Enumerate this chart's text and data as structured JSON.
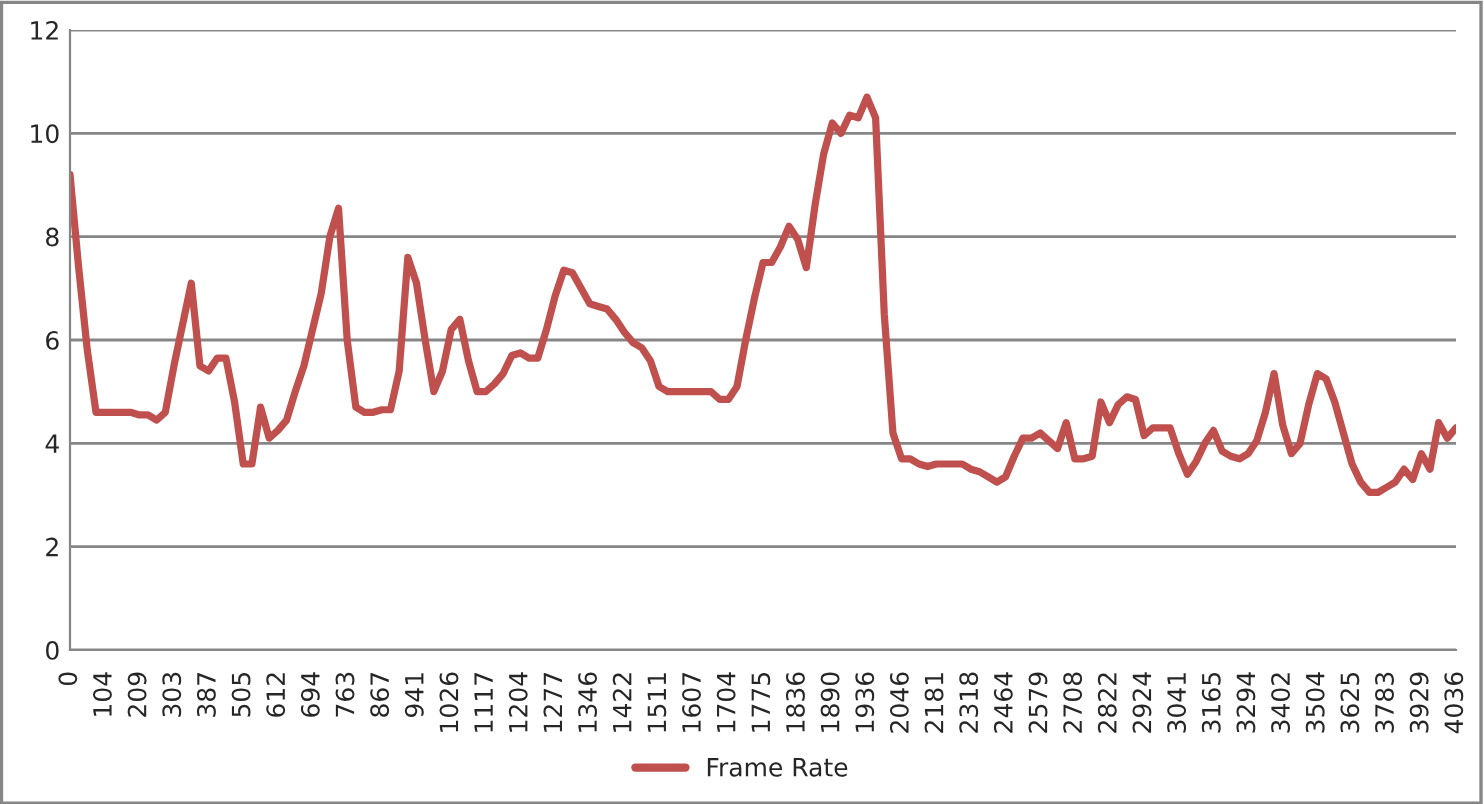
{
  "chart_data": {
    "type": "line",
    "categories": [
      "0",
      null,
      null,
      null,
      "104",
      null,
      null,
      null,
      "209",
      null,
      null,
      null,
      "303",
      null,
      null,
      null,
      "387",
      null,
      null,
      null,
      "505",
      null,
      null,
      null,
      "612",
      null,
      null,
      null,
      "694",
      null,
      null,
      null,
      "763",
      null,
      null,
      null,
      "867",
      null,
      null,
      null,
      "941",
      null,
      null,
      null,
      "1026",
      null,
      null,
      null,
      "1117",
      null,
      null,
      null,
      "1204",
      null,
      null,
      null,
      "1277",
      null,
      null,
      null,
      "1346",
      null,
      null,
      null,
      "1422",
      null,
      null,
      null,
      "1511",
      null,
      null,
      null,
      "1607",
      null,
      null,
      null,
      "1704",
      null,
      null,
      null,
      "1775",
      null,
      null,
      null,
      "1836",
      null,
      null,
      null,
      "1890",
      null,
      null,
      null,
      "1936",
      null,
      null,
      null,
      "2046",
      null,
      null,
      null,
      "2181",
      null,
      null,
      null,
      "2318",
      null,
      null,
      null,
      "2464",
      null,
      null,
      null,
      "2579",
      null,
      null,
      null,
      "2708",
      null,
      null,
      null,
      "2822",
      null,
      null,
      null,
      "2924",
      null,
      null,
      null,
      "3041",
      null,
      null,
      null,
      "3165",
      null,
      null,
      null,
      "3294",
      null,
      null,
      null,
      "3402",
      null,
      null,
      null,
      "3504",
      null,
      null,
      null,
      "3625",
      null,
      null,
      null,
      "3783",
      null,
      null,
      null,
      "3929",
      null,
      null,
      null,
      "4036"
    ],
    "series": [
      {
        "name": "Frame Rate",
        "color": "#c0504d",
        "values": [
          9.2,
          7.4,
          5.8,
          4.6,
          4.6,
          4.6,
          4.6,
          4.6,
          4.55,
          4.55,
          4.45,
          4.6,
          5.5,
          6.3,
          7.1,
          5.5,
          5.4,
          5.65,
          5.65,
          4.8,
          3.6,
          3.6,
          4.7,
          4.1,
          4.25,
          4.45,
          5.0,
          5.5,
          6.2,
          6.9,
          8.0,
          8.55,
          6.0,
          4.7,
          4.6,
          4.6,
          4.65,
          4.65,
          5.4,
          7.6,
          7.1,
          6.0,
          5.0,
          5.4,
          6.2,
          6.4,
          5.6,
          5.0,
          5.0,
          5.15,
          5.35,
          5.7,
          5.75,
          5.65,
          5.65,
          6.2,
          6.85,
          7.35,
          7.3,
          7.0,
          6.7,
          6.65,
          6.6,
          6.4,
          6.15,
          5.95,
          5.85,
          5.6,
          5.1,
          5.0,
          5.0,
          5.0,
          5.0,
          5.0,
          5.0,
          4.85,
          4.85,
          5.1,
          6.0,
          6.8,
          7.5,
          7.5,
          7.8,
          8.2,
          7.95,
          7.4,
          8.6,
          9.6,
          10.2,
          10.0,
          10.35,
          10.3,
          10.7,
          10.3,
          6.5,
          4.2,
          3.7,
          3.7,
          3.6,
          3.55,
          3.6,
          3.6,
          3.6,
          3.6,
          3.5,
          3.45,
          3.35,
          3.25,
          3.35,
          3.75,
          4.1,
          4.1,
          4.2,
          4.05,
          3.9,
          4.4,
          3.7,
          3.7,
          3.75,
          4.8,
          4.4,
          4.75,
          4.9,
          4.85,
          4.15,
          4.3,
          4.3,
          4.3,
          3.8,
          3.4,
          3.65,
          4.0,
          4.25,
          3.85,
          3.75,
          3.7,
          3.8,
          4.05,
          4.6,
          5.35,
          4.35,
          3.8,
          4.0,
          4.75,
          5.35,
          5.25,
          4.8,
          4.2,
          3.6,
          3.25,
          3.05,
          3.05,
          3.15,
          3.25,
          3.5,
          3.3,
          3.8,
          3.5,
          4.4,
          4.1,
          4.3
        ]
      }
    ],
    "ylim": [
      0,
      12
    ],
    "yticks": [
      0,
      2,
      4,
      6,
      8,
      10,
      12
    ],
    "grid": "y",
    "legend": "bottom",
    "marker": "none",
    "line_style": "solid"
  }
}
